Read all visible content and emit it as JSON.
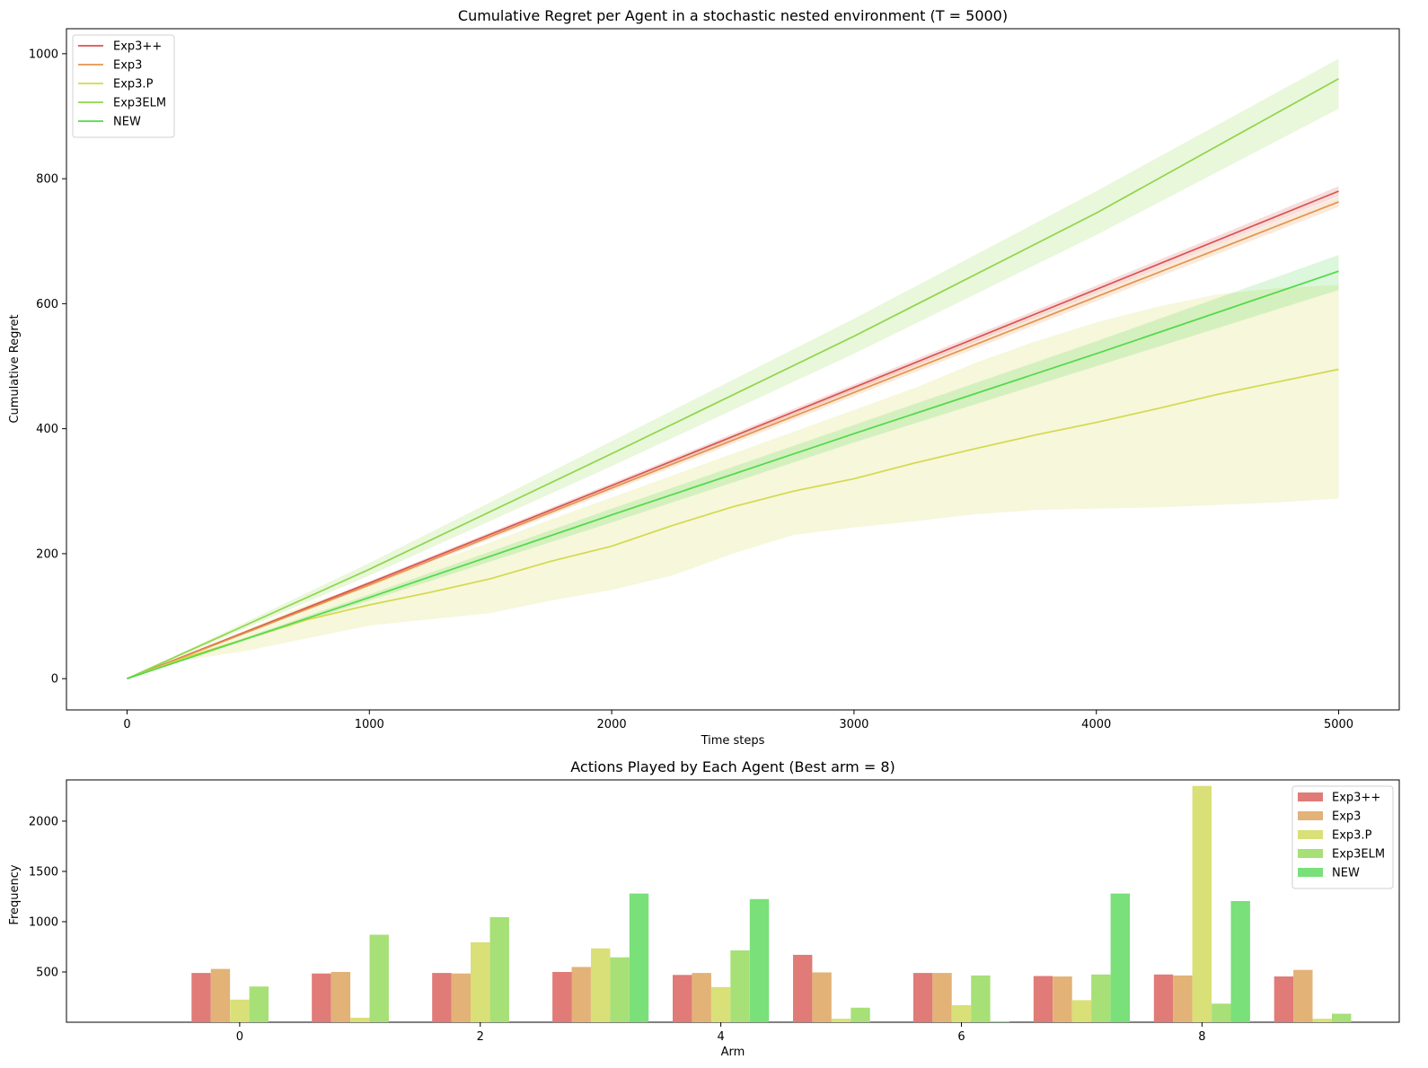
{
  "chart_data": [
    {
      "type": "line",
      "title": "Cumulative Regret per Agent in a stochastic nested environment (T = 5000)",
      "xlabel": "Time steps",
      "ylabel": "Cumulative Regret",
      "xlim": [
        -250,
        5250
      ],
      "ylim": [
        -50,
        1040
      ],
      "xticks": [
        0,
        1000,
        2000,
        3000,
        4000,
        5000
      ],
      "yticks": [
        0,
        200,
        400,
        600,
        800,
        1000
      ],
      "grid": false,
      "legend_position": "upper left",
      "bands_shown": true,
      "series": [
        {
          "name": "Exp3++",
          "color": "#d9534f",
          "x": [
            0,
            1000,
            2000,
            3000,
            4000,
            5000
          ],
          "y": [
            0,
            153,
            309,
            466,
            623,
            780
          ],
          "lower": [
            0,
            150,
            305,
            461,
            617,
            772
          ],
          "upper": [
            0,
            156,
            313,
            471,
            629,
            788
          ]
        },
        {
          "name": "Exp3",
          "color": "#e4944d",
          "x": [
            0,
            1000,
            2000,
            3000,
            4000,
            5000
          ],
          "y": [
            0,
            150,
            305,
            458,
            611,
            763
          ],
          "lower": [
            0,
            147,
            300,
            452,
            604,
            755
          ],
          "upper": [
            0,
            153,
            310,
            464,
            618,
            771
          ]
        },
        {
          "name": "Exp3.P",
          "color": "#d4d94c",
          "x": [
            0,
            250,
            500,
            750,
            1000,
            1250,
            1500,
            1750,
            2000,
            2250,
            2500,
            2750,
            3000,
            3250,
            3500,
            3750,
            4000,
            4250,
            4500,
            4750,
            5000
          ],
          "y": [
            0,
            35,
            65,
            95,
            118,
            138,
            160,
            188,
            212,
            245,
            275,
            300,
            320,
            345,
            368,
            390,
            410,
            432,
            455,
            475,
            495
          ],
          "lower": [
            0,
            30,
            45,
            65,
            85,
            95,
            105,
            125,
            142,
            165,
            200,
            230,
            242,
            252,
            263,
            270,
            272,
            274,
            278,
            282,
            288
          ],
          "upper": [
            0,
            40,
            80,
            120,
            152,
            185,
            218,
            255,
            290,
            325,
            360,
            395,
            430,
            465,
            505,
            540,
            570,
            595,
            615,
            625,
            630
          ]
        },
        {
          "name": "Exp3ELM",
          "color": "#8fd64a",
          "x": [
            0,
            1000,
            2000,
            3000,
            4000,
            5000
          ],
          "y": [
            0,
            175,
            360,
            548,
            745,
            960
          ],
          "lower": [
            0,
            165,
            340,
            520,
            710,
            912
          ],
          "upper": [
            0,
            185,
            380,
            576,
            780,
            992
          ]
        },
        {
          "name": "NEW",
          "color": "#52d94a",
          "x": [
            0,
            1000,
            2000,
            3000,
            4000,
            5000
          ],
          "y": [
            0,
            130,
            262,
            392,
            520,
            652
          ],
          "lower": [
            0,
            125,
            250,
            378,
            500,
            622
          ],
          "upper": [
            0,
            135,
            272,
            406,
            540,
            678
          ]
        }
      ]
    },
    {
      "type": "bar",
      "title": "Actions Played by Each Agent (Best arm = 8)",
      "xlabel": "Arm",
      "ylabel": "Frequency",
      "categories": [
        0,
        1,
        2,
        3,
        4,
        5,
        6,
        7,
        8,
        9
      ],
      "xticks": [
        0,
        2,
        4,
        6,
        8
      ],
      "yticks": [
        500,
        1000,
        1500,
        2000
      ],
      "ylim": [
        0,
        2410
      ],
      "grid": false,
      "legend_position": "upper right",
      "series": [
        {
          "name": "Exp3++",
          "color": "#e07b77",
          "values": [
            490,
            485,
            490,
            500,
            470,
            670,
            490,
            460,
            475,
            455
          ]
        },
        {
          "name": "Exp3",
          "color": "#e2b277",
          "values": [
            530,
            500,
            485,
            550,
            490,
            495,
            490,
            455,
            465,
            520
          ]
        },
        {
          "name": "Exp3.P",
          "color": "#d9e077",
          "values": [
            225,
            45,
            795,
            735,
            350,
            35,
            170,
            220,
            2350,
            35
          ]
        },
        {
          "name": "Exp3ELM",
          "color": "#a6e077",
          "values": [
            355,
            870,
            1045,
            645,
            715,
            145,
            465,
            475,
            185,
            85
          ]
        },
        {
          "name": "NEW",
          "color": "#7ae07a",
          "values": [
            0,
            0,
            0,
            1280,
            1225,
            0,
            8,
            1280,
            1205,
            0
          ]
        }
      ]
    }
  ]
}
